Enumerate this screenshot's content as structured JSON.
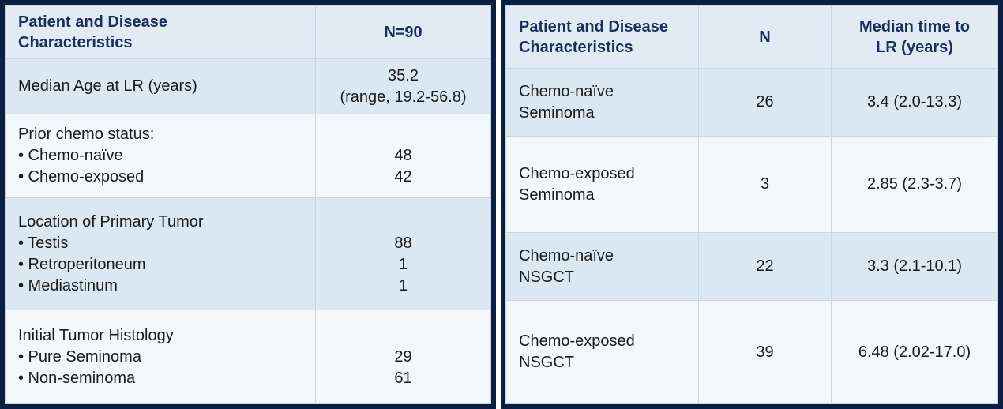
{
  "left_table": {
    "header": {
      "characteristics_line1": "Patient and Disease",
      "characteristics_line2": "Characteristics",
      "n": "N=90"
    },
    "median_age": {
      "label": "Median Age at LR (years)",
      "value_line1": "35.2",
      "value_line2": "(range, 19.2-56.8)"
    },
    "prior_chemo": {
      "label": "Prior chemo status:",
      "items": [
        {
          "label": "•   Chemo-naïve",
          "value": "48"
        },
        {
          "label": "•   Chemo-exposed",
          "value": "42"
        }
      ]
    },
    "primary_location": {
      "label": "Location of Primary Tumor",
      "items": [
        {
          "label": "• Testis",
          "value": "88"
        },
        {
          "label": "• Retroperitoneum",
          "value": "1"
        },
        {
          "label": "• Mediastinum",
          "value": "1"
        }
      ]
    },
    "histology": {
      "label": "Initial Tumor Histology",
      "items": [
        {
          "label": "• Pure Seminoma",
          "value": "29"
        },
        {
          "label": "• Non-seminoma",
          "value": "61"
        }
      ]
    }
  },
  "right_table": {
    "header": {
      "characteristics_line1": "Patient and Disease",
      "characteristics_line2": "Characteristics",
      "n": "N",
      "median_line1": "Median time to",
      "median_line2": "LR (years)"
    },
    "rows": [
      {
        "line1": "Chemo-naïve",
        "line2": "Seminoma",
        "n": "26",
        "median": "3.4 (2.0-13.3)"
      },
      {
        "line1": "Chemo-exposed",
        "line2": "Seminoma",
        "n": "3",
        "median": "2.85 (2.3-3.7)"
      },
      {
        "line1": "Chemo-naïve",
        "line2": "NSGCT",
        "n": "22",
        "median": "3.3 (2.1-10.1)"
      },
      {
        "line1": "Chemo-exposed",
        "line2": "NSGCT",
        "n": "39",
        "median": "6.48 (2.02-17.0)"
      }
    ]
  },
  "colors": {
    "border": "#0b1f45",
    "header_text": "#1a2f5a",
    "row_shade": "#dce8f1",
    "row_plain": "#f3f7fa"
  }
}
